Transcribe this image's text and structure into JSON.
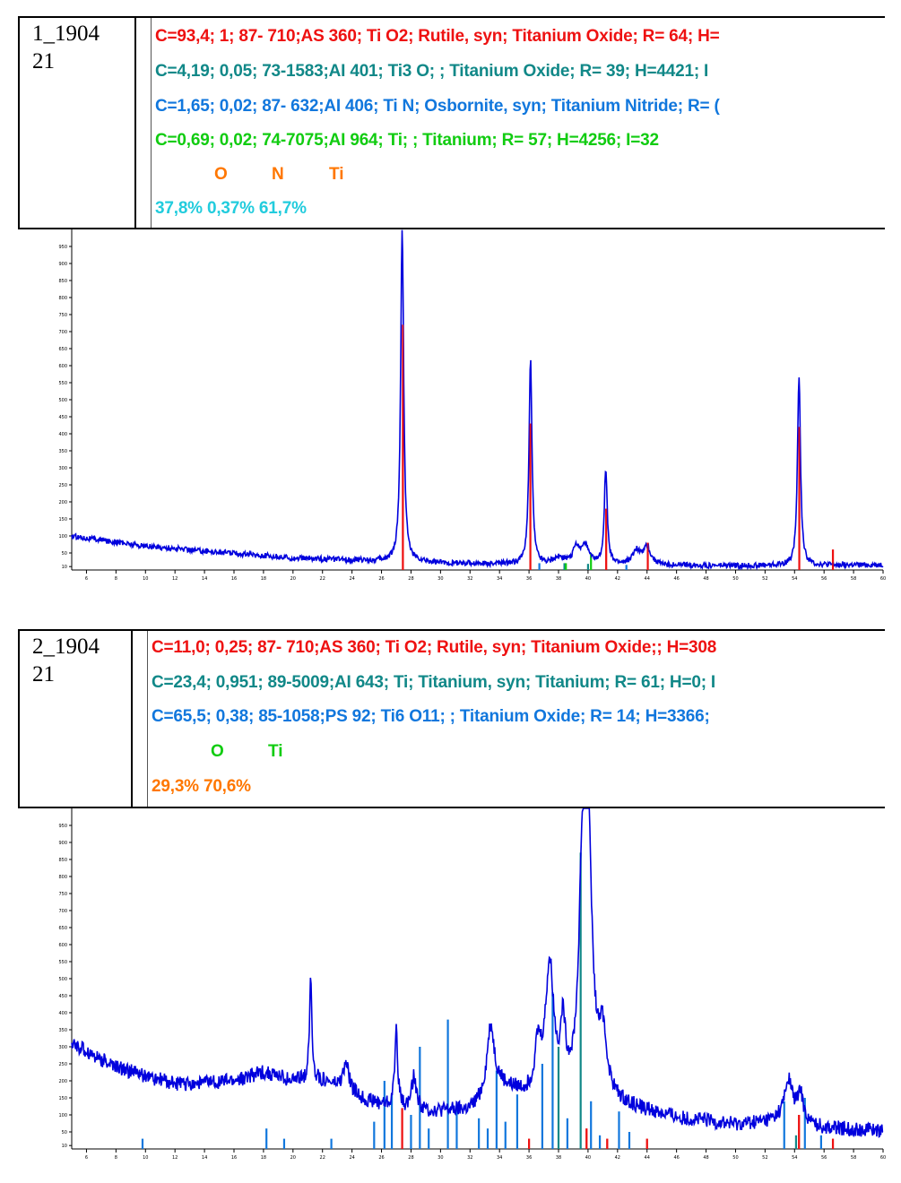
{
  "panels": [
    {
      "sample_id_line1": "1_1904",
      "sample_id_line2": "21",
      "matches": [
        {
          "text": "C=93,4; 1;  87- 710;AS 360; Ti O2; Rutile, syn; Titanium Oxide; R= 64; H=",
          "color": "#ee1111"
        },
        {
          "text": "C=4,19; 0,05;  73-1583;AI 401; Ti3 O; ; Titanium Oxide; R= 39; H=4421; I",
          "color": "#118888"
        },
        {
          "text": "C=1,65; 0,02;  87- 632;AI 406; Ti N; Osbornite, syn; Titanium Nitride; R= (",
          "color": "#1177dd"
        },
        {
          "text": "C=0,69; 0,02;  74-7075;AI 964; Ti; ; Titanium; R= 57; H=4256; I=32",
          "color": "#11cc11"
        }
      ],
      "elements": [
        "O",
        "N",
        "Ti"
      ],
      "elements_color": "#ff7700",
      "fractions": "37,8% 0,37% 61,7%",
      "fractions_color": "#22ccdd"
    },
    {
      "sample_id_line1": "2_1904",
      "sample_id_line2": "21",
      "matches": [
        {
          "text": "C=11,0; 0,25;  87- 710;AS 360; Ti O2; Rutile, syn; Titanium Oxide;; H=308",
          "color": "#ee1111"
        },
        {
          "text": "C=23,4; 0,951;  89-5009;AI 643; Ti; Titanium, syn; Titanium; R= 61; H=0; I",
          "color": "#118888"
        },
        {
          "text": "C=65,5; 0,38;  85-1058;PS 92; Ti6 O11; ; Titanium Oxide; R= 14; H=3366;",
          "color": "#1177dd"
        }
      ],
      "elements": [
        "O",
        "Ti"
      ],
      "elements_color": "#11cc11",
      "fractions": "29,3% 70,6%",
      "fractions_color": "#ff7700"
    }
  ],
  "chart_data": [
    {
      "type": "line",
      "title": "",
      "xlabel": "",
      "ylabel": "",
      "xlim": [
        5,
        60
      ],
      "ylim": [
        0,
        1000
      ],
      "x_ticks": [
        6,
        8,
        10,
        12,
        14,
        16,
        18,
        20,
        22,
        24,
        26,
        28,
        30,
        32,
        34,
        36,
        38,
        40,
        42,
        44,
        46,
        48,
        50,
        52,
        54,
        56,
        58,
        60
      ],
      "y_ticks": [
        10,
        50,
        100,
        150,
        200,
        250,
        300,
        350,
        400,
        450,
        500,
        550,
        600,
        650,
        700,
        750,
        800,
        850,
        900,
        950
      ],
      "trace_color": "#0000dd",
      "background": [
        [
          5,
          100
        ],
        [
          10,
          70
        ],
        [
          20,
          35
        ],
        [
          30,
          20
        ],
        [
          40,
          14
        ],
        [
          50,
          12
        ],
        [
          60,
          15
        ]
      ],
      "noise": 8,
      "peaks": [
        {
          "x": 27.4,
          "height": 980,
          "width": 0.12
        },
        {
          "x": 36.1,
          "height": 600,
          "width": 0.12
        },
        {
          "x": 41.2,
          "height": 280,
          "width": 0.12
        },
        {
          "x": 39.2,
          "height": 50,
          "width": 0.25
        },
        {
          "x": 39.8,
          "height": 55,
          "width": 0.3
        },
        {
          "x": 44.0,
          "height": 50,
          "width": 0.3
        },
        {
          "x": 43.3,
          "height": 40,
          "width": 0.35
        },
        {
          "x": 54.3,
          "height": 560,
          "width": 0.12
        },
        {
          "x": 38.0,
          "height": 20,
          "width": 0.4
        }
      ],
      "sticks": [
        {
          "x": 27.45,
          "value": 720,
          "color": "#ee1111"
        },
        {
          "x": 36.09,
          "value": 430,
          "color": "#ee1111"
        },
        {
          "x": 41.23,
          "value": 180,
          "color": "#ee1111"
        },
        {
          "x": 44.05,
          "value": 80,
          "color": "#ee1111"
        },
        {
          "x": 54.32,
          "value": 420,
          "color": "#ee1111"
        },
        {
          "x": 56.6,
          "value": 60,
          "color": "#ee1111"
        },
        {
          "x": 38.4,
          "value": 20,
          "color": "#118888"
        },
        {
          "x": 40.0,
          "value": 18,
          "color": "#118888"
        },
        {
          "x": 36.7,
          "value": 20,
          "color": "#1177dd"
        },
        {
          "x": 42.6,
          "value": 15,
          "color": "#1177dd"
        },
        {
          "x": 40.2,
          "value": 50,
          "color": "#11cc11"
        },
        {
          "x": 38.5,
          "value": 20,
          "color": "#11cc11"
        }
      ]
    },
    {
      "type": "line",
      "title": "",
      "xlabel": "",
      "ylabel": "",
      "xlim": [
        5,
        60
      ],
      "ylim": [
        0,
        1000
      ],
      "x_ticks": [
        6,
        8,
        10,
        12,
        14,
        16,
        18,
        20,
        22,
        24,
        26,
        28,
        30,
        32,
        34,
        36,
        38,
        40,
        42,
        44,
        46,
        48,
        50,
        52,
        54,
        56,
        58,
        60
      ],
      "y_ticks": [
        10,
        50,
        100,
        150,
        200,
        250,
        300,
        350,
        400,
        450,
        500,
        550,
        600,
        650,
        700,
        750,
        800,
        850,
        900,
        950
      ],
      "trace_color": "#0000dd",
      "background": [
        [
          5,
          310
        ],
        [
          8,
          240
        ],
        [
          12,
          190
        ],
        [
          16,
          200
        ],
        [
          18,
          225
        ],
        [
          20,
          200
        ],
        [
          22,
          200
        ],
        [
          25,
          140
        ],
        [
          28,
          110
        ],
        [
          32,
          110
        ],
        [
          34,
          180
        ],
        [
          36,
          150
        ],
        [
          38,
          140
        ],
        [
          40,
          180
        ],
        [
          42,
          130
        ],
        [
          46,
          90
        ],
        [
          50,
          70
        ],
        [
          53,
          80
        ],
        [
          56,
          60
        ],
        [
          60,
          55
        ]
      ],
      "noise": 22,
      "peaks": [
        {
          "x": 21.2,
          "height": 300,
          "width": 0.1
        },
        {
          "x": 23.6,
          "height": 80,
          "width": 0.25
        },
        {
          "x": 27.0,
          "height": 230,
          "width": 0.12
        },
        {
          "x": 28.2,
          "height": 100,
          "width": 0.2
        },
        {
          "x": 33.4,
          "height": 200,
          "width": 0.3
        },
        {
          "x": 36.6,
          "height": 130,
          "width": 0.25
        },
        {
          "x": 37.4,
          "height": 380,
          "width": 0.35
        },
        {
          "x": 38.3,
          "height": 180,
          "width": 0.2
        },
        {
          "x": 39.6,
          "height": 520,
          "width": 0.25
        },
        {
          "x": 40.0,
          "height": 750,
          "width": 0.3
        },
        {
          "x": 41.0,
          "height": 160,
          "width": 0.3
        },
        {
          "x": 53.6,
          "height": 120,
          "width": 0.35
        },
        {
          "x": 54.4,
          "height": 80,
          "width": 0.25
        }
      ],
      "sticks": [
        {
          "x": 9.8,
          "value": 30,
          "color": "#1177dd"
        },
        {
          "x": 18.2,
          "value": 60,
          "color": "#1177dd"
        },
        {
          "x": 19.4,
          "value": 30,
          "color": "#1177dd"
        },
        {
          "x": 22.6,
          "value": 30,
          "color": "#1177dd"
        },
        {
          "x": 25.5,
          "value": 80,
          "color": "#1177dd"
        },
        {
          "x": 26.2,
          "value": 200,
          "color": "#1177dd"
        },
        {
          "x": 26.7,
          "value": 160,
          "color": "#1177dd"
        },
        {
          "x": 27.4,
          "value": 120,
          "color": "#ee1111"
        },
        {
          "x": 28.0,
          "value": 100,
          "color": "#1177dd"
        },
        {
          "x": 28.6,
          "value": 300,
          "color": "#1177dd"
        },
        {
          "x": 29.2,
          "value": 60,
          "color": "#1177dd"
        },
        {
          "x": 30.5,
          "value": 380,
          "color": "#1177dd"
        },
        {
          "x": 31.1,
          "value": 120,
          "color": "#1177dd"
        },
        {
          "x": 32.6,
          "value": 90,
          "color": "#1177dd"
        },
        {
          "x": 33.2,
          "value": 60,
          "color": "#1177dd"
        },
        {
          "x": 33.8,
          "value": 230,
          "color": "#1177dd"
        },
        {
          "x": 34.4,
          "value": 80,
          "color": "#1177dd"
        },
        {
          "x": 35.2,
          "value": 160,
          "color": "#1177dd"
        },
        {
          "x": 36.0,
          "value": 30,
          "color": "#ee1111"
        },
        {
          "x": 36.9,
          "value": 250,
          "color": "#1177dd"
        },
        {
          "x": 37.6,
          "value": 460,
          "color": "#1177dd"
        },
        {
          "x": 38.0,
          "value": 300,
          "color": "#118888"
        },
        {
          "x": 38.6,
          "value": 90,
          "color": "#1177dd"
        },
        {
          "x": 39.5,
          "value": 870,
          "color": "#118888"
        },
        {
          "x": 39.9,
          "value": 60,
          "color": "#ee1111"
        },
        {
          "x": 40.2,
          "value": 140,
          "color": "#1177dd"
        },
        {
          "x": 40.8,
          "value": 40,
          "color": "#1177dd"
        },
        {
          "x": 41.3,
          "value": 30,
          "color": "#ee1111"
        },
        {
          "x": 42.1,
          "value": 110,
          "color": "#1177dd"
        },
        {
          "x": 42.8,
          "value": 50,
          "color": "#1177dd"
        },
        {
          "x": 44.0,
          "value": 30,
          "color": "#ee1111"
        },
        {
          "x": 53.3,
          "value": 140,
          "color": "#1177dd"
        },
        {
          "x": 54.1,
          "value": 40,
          "color": "#118888"
        },
        {
          "x": 54.3,
          "value": 100,
          "color": "#ee1111"
        },
        {
          "x": 54.7,
          "value": 150,
          "color": "#1177dd"
        },
        {
          "x": 55.8,
          "value": 40,
          "color": "#1177dd"
        },
        {
          "x": 56.6,
          "value": 30,
          "color": "#ee1111"
        }
      ]
    }
  ]
}
